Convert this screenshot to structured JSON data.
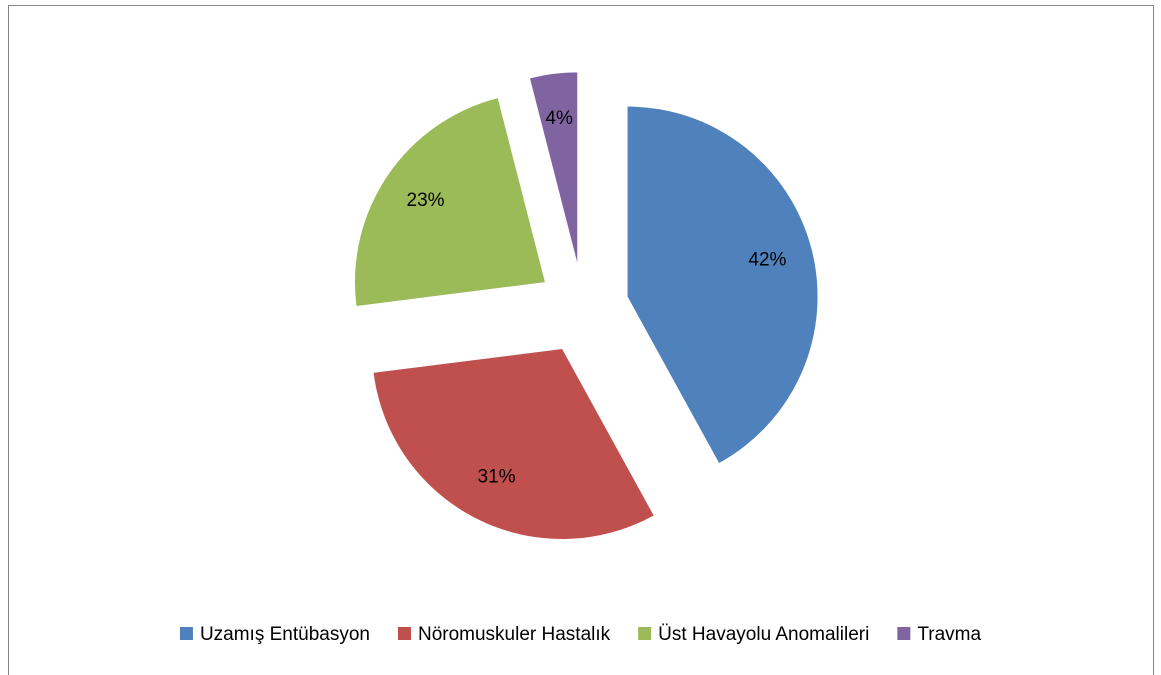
{
  "chart_data": {
    "type": "pie",
    "categories": [
      "Uzamış Entübasyon",
      "Nöromuskuler Hastalık",
      "Üst Havayolu Anomalileri",
      "Travma"
    ],
    "values": [
      42,
      31,
      23,
      4
    ],
    "value_labels": [
      "42%",
      "31%",
      "23%",
      "4%"
    ],
    "colors": [
      "#4f81bd",
      "#c0504d",
      "#9bbb59",
      "#8064a2"
    ],
    "legend": "bottom"
  }
}
